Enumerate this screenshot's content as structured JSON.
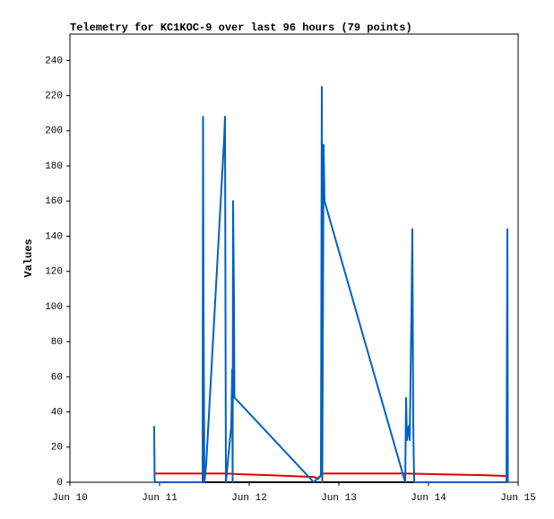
{
  "chart_data": {
    "type": "line",
    "title": "Telemetry for KC1KOC-9 over last 96 hours (79 points)",
    "y_label": "Values",
    "xlim": [
      10,
      15
    ],
    "xticks": [
      {
        "value": 10,
        "label": "Jun 10"
      },
      {
        "value": 11,
        "label": "Jun 11"
      },
      {
        "value": 12,
        "label": "Jun 12"
      },
      {
        "value": 13,
        "label": "Jun 13"
      },
      {
        "value": 14,
        "label": "Jun 14"
      },
      {
        "value": 15,
        "label": "Jun 15"
      }
    ],
    "ylim": [
      0,
      255
    ],
    "yticks": [
      0,
      20,
      40,
      60,
      80,
      100,
      120,
      140,
      160,
      180,
      200,
      220,
      240
    ],
    "grid": false,
    "series": [
      {
        "color": "#000000",
        "x": [
          10.95,
          14.88
        ],
        "values": [
          0,
          0
        ]
      },
      {
        "color": "#e00000",
        "x": [
          10.95,
          11.72,
          11.92,
          12.22,
          12.72,
          12.77,
          12.82,
          13.72,
          14.12,
          14.62,
          14.88
        ],
        "values": [
          5,
          5,
          4.5,
          4,
          3,
          2,
          5,
          5,
          4.5,
          4,
          3.5
        ]
      },
      {
        "color": "#0060c0",
        "x": [
          10.94,
          10.945,
          11.48,
          11.485,
          11.49,
          11.5,
          11.52,
          11.72,
          11.73,
          11.74,
          11.8,
          11.81,
          11.815,
          11.82,
          11.83,
          11.835,
          11.84,
          12.72,
          12.8,
          12.81,
          12.815,
          12.83,
          12.835,
          12.84,
          13.74,
          13.75,
          13.76,
          13.78,
          13.79,
          13.81,
          13.82,
          13.83,
          13.84,
          14.87,
          14.875,
          14.88,
          14.885
        ],
        "values": [
          32,
          0,
          0,
          208,
          104,
          0,
          10,
          195,
          208,
          0,
          32,
          64,
          0,
          160,
          104,
          48,
          48,
          0,
          4,
          225,
          0,
          192,
          176,
          160,
          0,
          48,
          24,
          32,
          24,
          96,
          144,
          32,
          0,
          0,
          72,
          144,
          0
        ]
      }
    ]
  }
}
